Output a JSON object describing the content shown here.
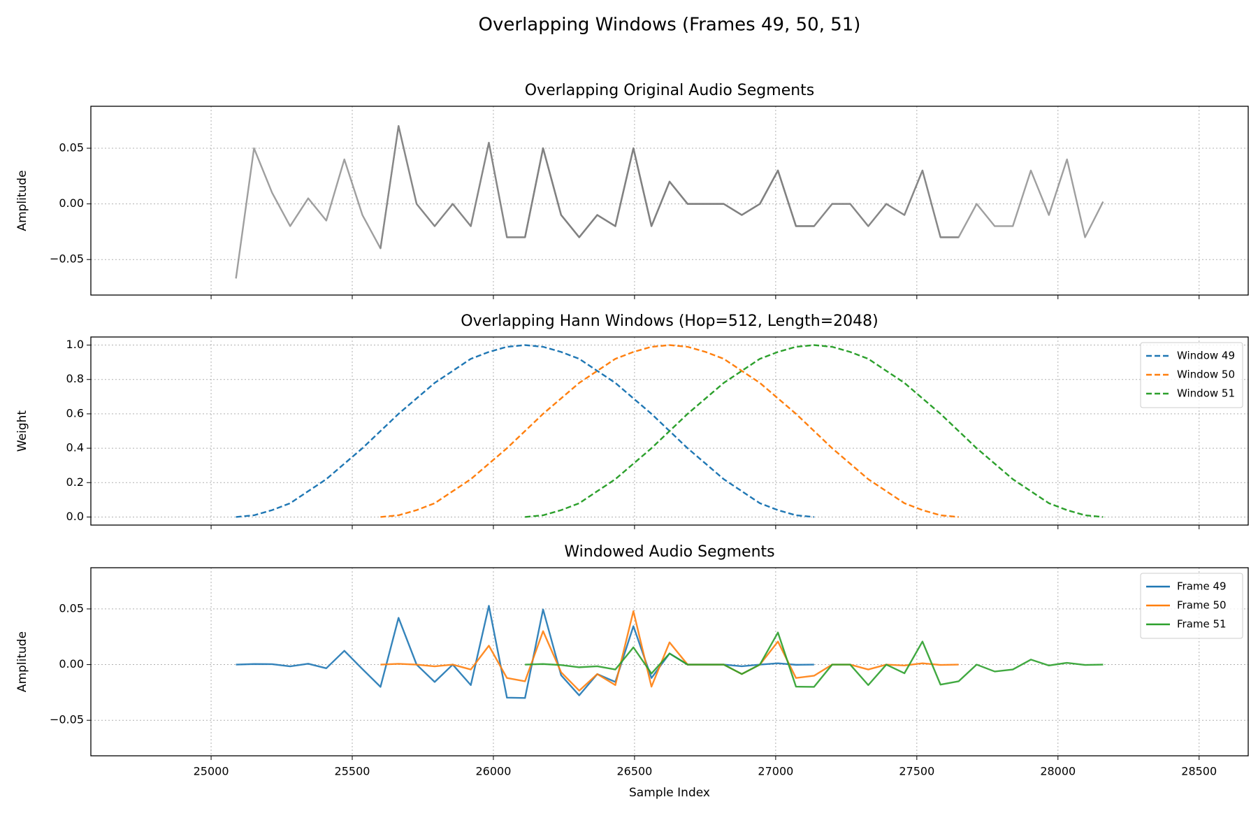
{
  "title": "Overlapping Windows (Frames 49, 50, 51)",
  "chart_data": [
    {
      "type": "line",
      "title": "Overlapping Original Audio Segments",
      "y_label": "Amplitude",
      "xlim": [
        24574,
        28674
      ],
      "ylim": [
        -0.0819,
        0.0877
      ],
      "xticks": [
        25000,
        25500,
        26000,
        26500,
        27000,
        27500,
        28000,
        28500
      ],
      "show_xtick_labels": false,
      "yticks": [
        {
          "value": -0.05,
          "label": "−0.05"
        },
        {
          "value": 0,
          "label": "0.00"
        },
        0.05
      ],
      "grid": true,
      "dash": false,
      "legend": null,
      "alpha": 0.75,
      "series": [
        {
          "color": "#7f7f7f",
          "x": [
            25088,
            25152,
            25216,
            25280,
            25344,
            25408,
            25472,
            25536,
            25600,
            25664,
            25728,
            25792,
            25856,
            25920,
            25984,
            26048,
            26112,
            26176,
            26240,
            26304,
            26368,
            26432,
            26496,
            26560,
            26624,
            26688,
            26752,
            26816,
            26880,
            26944,
            27008,
            27072,
            27136
          ],
          "values": [
            -0.067,
            0.05,
            0.01,
            -0.02,
            0.005,
            -0.015,
            0.04,
            -0.01,
            -0.04,
            0.07,
            0.0,
            -0.02,
            0.0,
            -0.02,
            0.055,
            -0.03,
            -0.03,
            0.05,
            -0.01,
            -0.03,
            -0.01,
            -0.02,
            0.05,
            -0.02,
            0.02,
            0,
            0,
            0,
            -0.01,
            0,
            0.03,
            -0.02,
            -0.02
          ]
        },
        {
          "color": "#7f7f7f",
          "x": [
            25600,
            25664,
            25728,
            25792,
            25856,
            25920,
            25984,
            26048,
            26112,
            26176,
            26240,
            26304,
            26368,
            26432,
            26496,
            26560,
            26624,
            26688,
            26752,
            26816,
            26880,
            26944,
            27008,
            27072,
            27136,
            27200,
            27264,
            27328,
            27392,
            27456,
            27520,
            27584,
            27648
          ],
          "values": [
            -0.04,
            0.07,
            0,
            -0.02,
            0,
            -0.02,
            0.055,
            -0.03,
            -0.03,
            0.05,
            -0.01,
            -0.03,
            -0.01,
            -0.02,
            0.05,
            -0.02,
            0.02,
            0,
            0,
            0,
            -0.01,
            0,
            0.03,
            -0.02,
            -0.02,
            0,
            0,
            -0.02,
            0,
            -0.01,
            0.03,
            -0.03,
            -0.03
          ]
        },
        {
          "color": "#7f7f7f",
          "x": [
            26112,
            26176,
            26240,
            26304,
            26368,
            26432,
            26496,
            26560,
            26624,
            26688,
            26752,
            26816,
            26880,
            26944,
            27008,
            27072,
            27136,
            27200,
            27264,
            27328,
            27392,
            27456,
            27520,
            27584,
            27648,
            27712,
            27776,
            27840,
            27904,
            27968,
            28032,
            28096,
            28160
          ],
          "values": [
            -0.03,
            0.05,
            -0.01,
            -0.03,
            -0.01,
            -0.02,
            0.05,
            -0.02,
            0.02,
            0,
            0,
            0,
            -0.01,
            0,
            0.03,
            -0.02,
            -0.02,
            0,
            0,
            -0.02,
            0,
            -0.01,
            0.03,
            -0.03,
            -0.03,
            0,
            -0.02,
            -0.02,
            0.03,
            -0.01,
            0.04,
            -0.03,
            0.002
          ]
        }
      ]
    },
    {
      "type": "line",
      "title": "Overlapping Hann Windows (Hop=512, Length=2048)",
      "y_label": "Weight",
      "xlim": [
        24574,
        28674
      ],
      "ylim": [
        -0.047,
        1.047
      ],
      "xticks": [
        25000,
        25500,
        26000,
        26500,
        27000,
        27500,
        28000,
        28500
      ],
      "show_xtick_labels": false,
      "yticks": [
        {
          "value": 0,
          "label": "0.0"
        },
        0.2,
        0.4,
        0.6,
        0.8,
        {
          "value": 1,
          "label": "1.0"
        }
      ],
      "grid": true,
      "dash": true,
      "legend": "upper-right",
      "alpha": 1,
      "series": [
        {
          "name": "Window 49",
          "color": "#1f77b4",
          "x": [
            25088,
            25152,
            25216,
            25280,
            25344,
            25408,
            25472,
            25536,
            25600,
            25664,
            25728,
            25792,
            25856,
            25920,
            25984,
            26048,
            26112,
            26176,
            26240,
            26304,
            26368,
            26432,
            26496,
            26560,
            26624,
            26688,
            26752,
            26816,
            26880,
            26944,
            27008,
            27072,
            27136
          ],
          "values": [
            0,
            0.01,
            0.04,
            0.08,
            0.15,
            0.22,
            0.31,
            0.4,
            0.5,
            0.6,
            0.69,
            0.78,
            0.85,
            0.92,
            0.96,
            0.99,
            1,
            0.99,
            0.96,
            0.92,
            0.85,
            0.78,
            0.69,
            0.6,
            0.5,
            0.4,
            0.31,
            0.22,
            0.15,
            0.08,
            0.04,
            0.01,
            0
          ]
        },
        {
          "name": "Window 50",
          "color": "#ff7f0e",
          "x": [
            25600,
            25664,
            25728,
            25792,
            25856,
            25920,
            25984,
            26048,
            26112,
            26176,
            26240,
            26304,
            26368,
            26432,
            26496,
            26560,
            26624,
            26688,
            26752,
            26816,
            26880,
            26944,
            27008,
            27072,
            27136,
            27200,
            27264,
            27328,
            27392,
            27456,
            27520,
            27584,
            27648
          ],
          "values": [
            0,
            0.01,
            0.04,
            0.08,
            0.15,
            0.22,
            0.31,
            0.4,
            0.5,
            0.6,
            0.69,
            0.78,
            0.85,
            0.92,
            0.96,
            0.99,
            1,
            0.99,
            0.96,
            0.92,
            0.85,
            0.78,
            0.69,
            0.6,
            0.5,
            0.4,
            0.31,
            0.22,
            0.15,
            0.08,
            0.04,
            0.01,
            0
          ]
        },
        {
          "name": "Window 51",
          "color": "#2ca02c",
          "x": [
            26112,
            26176,
            26240,
            26304,
            26368,
            26432,
            26496,
            26560,
            26624,
            26688,
            26752,
            26816,
            26880,
            26944,
            27008,
            27072,
            27136,
            27200,
            27264,
            27328,
            27392,
            27456,
            27520,
            27584,
            27648,
            27712,
            27776,
            27840,
            27904,
            27968,
            28032,
            28096,
            28160
          ],
          "values": [
            0,
            0.01,
            0.04,
            0.08,
            0.15,
            0.22,
            0.31,
            0.4,
            0.5,
            0.6,
            0.69,
            0.78,
            0.85,
            0.92,
            0.96,
            0.99,
            1,
            0.99,
            0.96,
            0.92,
            0.85,
            0.78,
            0.69,
            0.6,
            0.5,
            0.4,
            0.31,
            0.22,
            0.15,
            0.08,
            0.04,
            0.01,
            0
          ]
        }
      ]
    },
    {
      "type": "line",
      "title": "Windowed Audio Segments",
      "x_label": "Sample Index",
      "y_label": "Amplitude",
      "xlim": [
        24574,
        28674
      ],
      "ylim": [
        -0.0819,
        0.087
      ],
      "xticks": [
        25000,
        25500,
        26000,
        26500,
        27000,
        27500,
        28000,
        28500
      ],
      "show_xtick_labels": true,
      "yticks": [
        {
          "value": -0.05,
          "label": "−0.05"
        },
        {
          "value": 0,
          "label": "0.00"
        },
        0.05
      ],
      "grid": true,
      "dash": false,
      "legend": "upper-right",
      "alpha": 0.9,
      "series": [
        {
          "name": "Frame 49",
          "color": "#1f77b4",
          "x": [
            25088,
            25152,
            25216,
            25280,
            25344,
            25408,
            25472,
            25536,
            25600,
            25664,
            25728,
            25792,
            25856,
            25920,
            25984,
            26048,
            26112,
            26176,
            26240,
            26304,
            26368,
            26432,
            26496,
            26560,
            26624,
            26688,
            26752,
            26816,
            26880,
            26944,
            27008,
            27072,
            27136
          ],
          "values": [
            0,
            0.0005,
            0.0004,
            -0.0016,
            0.0008,
            -0.0033,
            0.0124,
            -0.004,
            -0.02,
            0.042,
            0,
            -0.0156,
            0,
            -0.0184,
            0.0528,
            -0.0297,
            -0.03,
            0.0495,
            -0.0096,
            -0.0276,
            -0.0085,
            -0.0156,
            0.0345,
            -0.012,
            0.01,
            0,
            0,
            0,
            -0.0015,
            0,
            0.0012,
            -0.0002,
            0
          ]
        },
        {
          "name": "Frame 50",
          "color": "#ff7f0e",
          "x": [
            25600,
            25664,
            25728,
            25792,
            25856,
            25920,
            25984,
            26048,
            26112,
            26176,
            26240,
            26304,
            26368,
            26432,
            26496,
            26560,
            26624,
            26688,
            26752,
            26816,
            26880,
            26944,
            27008,
            27072,
            27136,
            27200,
            27264,
            27328,
            27392,
            27456,
            27520,
            27584,
            27648
          ],
          "values": [
            0,
            0.0007,
            0,
            -0.0016,
            0,
            -0.0044,
            0.017,
            -0.012,
            -0.015,
            0.03,
            -0.0069,
            -0.0234,
            -0.0085,
            -0.0184,
            0.048,
            -0.0198,
            0.02,
            0,
            0,
            0,
            -0.0085,
            0,
            0.0207,
            -0.012,
            -0.01,
            0,
            0,
            -0.0044,
            0,
            -0.0008,
            0.0012,
            -0.0003,
            0
          ]
        },
        {
          "name": "Frame 51",
          "color": "#2ca02c",
          "x": [
            26112,
            26176,
            26240,
            26304,
            26368,
            26432,
            26496,
            26560,
            26624,
            26688,
            26752,
            26816,
            26880,
            26944,
            27008,
            27072,
            27136,
            27200,
            27264,
            27328,
            27392,
            27456,
            27520,
            27584,
            27648,
            27712,
            27776,
            27840,
            27904,
            27968,
            28032,
            28096,
            28160
          ],
          "values": [
            0,
            0.0005,
            -0.0004,
            -0.0024,
            -0.0015,
            -0.0044,
            0.0155,
            -0.008,
            0.01,
            0,
            0,
            0,
            -0.0085,
            0,
            0.0288,
            -0.0198,
            -0.02,
            0,
            0,
            -0.0184,
            0,
            -0.0078,
            0.0207,
            -0.018,
            -0.015,
            0,
            -0.0062,
            -0.0044,
            0.0045,
            -0.0008,
            0.0016,
            -0.0003,
            0
          ]
        }
      ]
    }
  ]
}
